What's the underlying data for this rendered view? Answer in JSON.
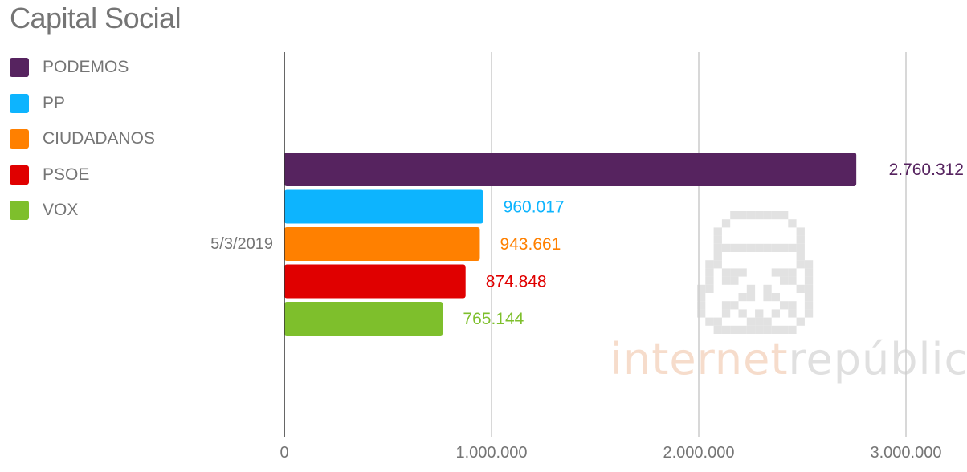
{
  "chart_data": {
    "type": "bar",
    "orientation": "horizontal",
    "title": "Capital Social",
    "categories": [
      "5/3/2019"
    ],
    "series": [
      {
        "name": "PODEMOS",
        "values": [
          2760312
        ],
        "label": "2.760.312",
        "color": "#56235f"
      },
      {
        "name": "PP",
        "values": [
          960017
        ],
        "label": "960.017",
        "color": "#0db4fe"
      },
      {
        "name": "CIUDADANOS",
        "values": [
          943661
        ],
        "label": "943.661",
        "color": "#ff8000"
      },
      {
        "name": "PSOE",
        "values": [
          874848
        ],
        "label": "874.848",
        "color": "#e00000"
      },
      {
        "name": "VOX",
        "values": [
          765144
        ],
        "label": "765.144",
        "color": "#7ebf2c"
      }
    ],
    "xlim": [
      0,
      3000000
    ],
    "xticks": [
      {
        "value": 0,
        "label": "0"
      },
      {
        "value": 1000000,
        "label": "1.000.000"
      },
      {
        "value": 2000000,
        "label": "2.000.000"
      },
      {
        "value": 3000000,
        "label": "3.000.000"
      }
    ],
    "grid": true,
    "legend_position": "top-left",
    "xlabel": "",
    "ylabel": ""
  },
  "watermark": {
    "part1": "internet",
    "part2": "república"
  }
}
